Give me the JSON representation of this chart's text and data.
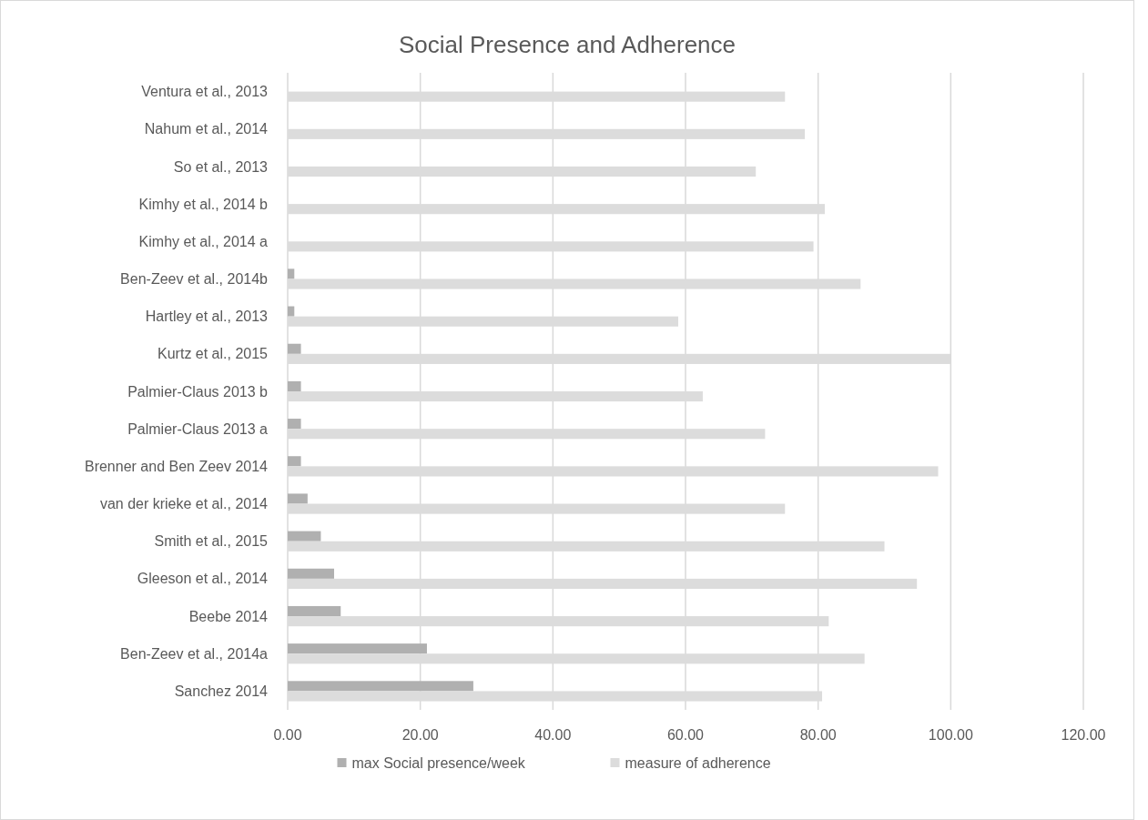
{
  "chart_data": {
    "type": "bar",
    "title": "Social Presence and Adherence",
    "orientation": "horizontal",
    "categories": [
      "Ventura et al., 2013",
      "Nahum et al., 2014",
      "So et al.,  2013",
      "Kimhy et al., 2014 b",
      "Kimhy et al., 2014 a",
      "Ben-Zeev et al., 2014b",
      "Hartley et al., 2013",
      "Kurtz et al., 2015",
      "Palmier-Claus 2013 b",
      "Palmier-Claus 2013 a",
      "Brenner and Ben Zeev 2014",
      "van der krieke et al., 2014",
      "Smith et al., 2015",
      "Gleeson et al., 2014",
      "Beebe 2014",
      "Ben-Zeev et al., 2014a",
      "Sanchez 2014"
    ],
    "series": [
      {
        "name": "max Social presence/week",
        "color": "#b0b0b0",
        "values": [
          0,
          0,
          0,
          0,
          0,
          1,
          1,
          2,
          2,
          2,
          2,
          3,
          5,
          7,
          8,
          21,
          28
        ]
      },
      {
        "name": "measure of adherence",
        "color": "#dcdcdc",
        "values": [
          75,
          78,
          70.6,
          81,
          79.3,
          86.4,
          58.9,
          100,
          62.6,
          72,
          98.1,
          75,
          90,
          94.9,
          81.6,
          87,
          80.6
        ]
      }
    ],
    "xlim": [
      0,
      120
    ],
    "xticks": [
      {
        "value": 0,
        "label": "0.00"
      },
      {
        "value": 20,
        "label": "20.00"
      },
      {
        "value": 40,
        "label": "40.00"
      },
      {
        "value": 60,
        "label": "60.00"
      },
      {
        "value": 80,
        "label": "80.00"
      },
      {
        "value": 100,
        "label": "100.00"
      },
      {
        "value": 120,
        "label": "120.00"
      }
    ],
    "grid": "x",
    "legend": "bottom"
  }
}
